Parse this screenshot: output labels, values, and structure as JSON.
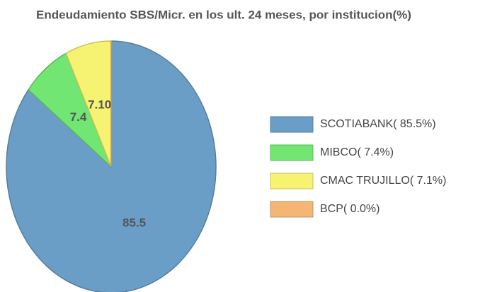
{
  "chart_data": {
    "type": "pie",
    "title": "Endeudamiento SBS/Micr. en los ult. 24 meses, por institucion(%)",
    "categories": [
      "SCOTIABANK( 85.5%)",
      "MIBCO( 7.4%)",
      "CMAC TRUJILLO( 7.1%)",
      "BCP( 0.0%)"
    ],
    "values": [
      85.5,
      7.4,
      7.1,
      0.0
    ],
    "value_labels": [
      "85.5",
      "7.4",
      "7.10",
      null
    ],
    "colors": [
      "#6a9ec6",
      "#72e672",
      "#f7f372",
      "#f5b575"
    ],
    "legend": "right"
  }
}
